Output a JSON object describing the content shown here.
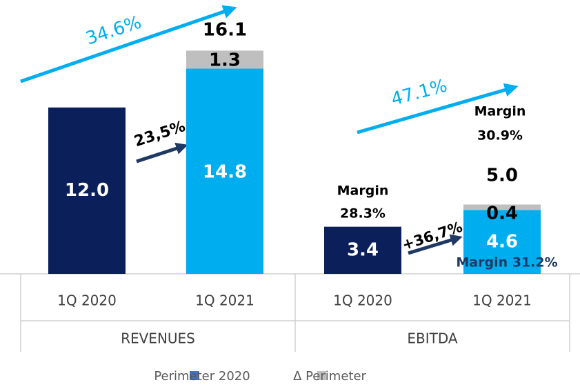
{
  "chart_data": {
    "type": "bar",
    "stacked": true,
    "groups": [
      {
        "name": "REVENUES",
        "categories": [
          "1Q 2020",
          "1Q 2021"
        ]
      },
      {
        "name": "EBITDA",
        "categories": [
          "1Q 2020",
          "1Q 2021"
        ]
      }
    ],
    "series": [
      {
        "name": "Perimeter 2020",
        "color": "#4472c4",
        "bar_colors": [
          "#0b1f5a",
          "#00aeef",
          "#0b1f5a",
          "#00aeef"
        ],
        "values": [
          12.0,
          14.8,
          3.4,
          4.6
        ],
        "value_labels": [
          "12.0",
          "14.8",
          "3.4",
          "4.6"
        ]
      },
      {
        "name": "Δ Perimeter",
        "color": "#bfbfbf",
        "values": [
          null,
          1.3,
          null,
          0.4
        ],
        "value_labels": [
          null,
          "1.3",
          null,
          "0.4"
        ]
      }
    ],
    "totals": [
      null,
      16.1,
      null,
      5.0
    ],
    "total_labels": [
      null,
      "16.1",
      null,
      "5.0"
    ],
    "annotations": [
      {
        "lines": [
          "34.6%"
        ],
        "color": "#00aeef"
      },
      {
        "lines": [
          "23,5%"
        ],
        "color": "#000000"
      },
      {
        "lines": [
          "47.1%"
        ],
        "color": "#00aeef"
      },
      {
        "lines": [
          "+36,7%"
        ],
        "color": "#000000"
      },
      {
        "lines": [
          "Margin",
          "28.3%"
        ],
        "color": "#000000"
      },
      {
        "lines": [
          "Margin",
          "30.9%"
        ],
        "color": "#000000"
      },
      {
        "lines": [
          "Margin 31.2%"
        ],
        "color": "#1f3864"
      }
    ]
  }
}
